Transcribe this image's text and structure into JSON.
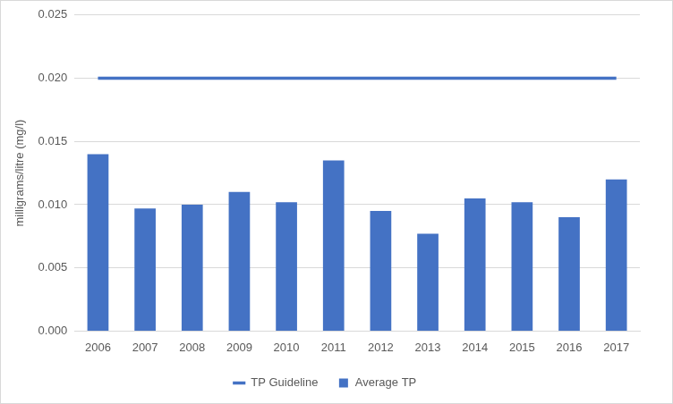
{
  "chart_data": {
    "type": "bar",
    "y_label": "milligrams/litre (mg/l)",
    "categories": [
      "2006",
      "2007",
      "2008",
      "2009",
      "2010",
      "2011",
      "2012",
      "2013",
      "2014",
      "2015",
      "2016",
      "2017"
    ],
    "series": [
      {
        "name": "Average TP",
        "type": "bar",
        "color": "#4472c4",
        "values": [
          0.014,
          0.0097,
          0.01,
          0.011,
          0.0102,
          0.0135,
          0.0095,
          0.0077,
          0.0105,
          0.0102,
          0.009,
          0.012
        ]
      },
      {
        "name": "TP Guideline",
        "type": "line",
        "color": "#4472c4",
        "values": [
          0.02,
          0.02,
          0.02,
          0.02,
          0.02,
          0.02,
          0.02,
          0.02,
          0.02,
          0.02,
          0.02,
          0.02
        ]
      }
    ],
    "ylim": [
      0,
      0.025
    ],
    "yticks": [
      {
        "value": 0,
        "label": "0.000"
      },
      {
        "value": 0.005,
        "label": "0.005"
      },
      {
        "value": 0.01,
        "label": "0.010"
      },
      {
        "value": 0.015,
        "label": "0.015"
      },
      {
        "value": 0.02,
        "label": "0.020"
      },
      {
        "value": 0.025,
        "label": "0.025"
      }
    ],
    "grid": true,
    "legend": "bottom"
  }
}
